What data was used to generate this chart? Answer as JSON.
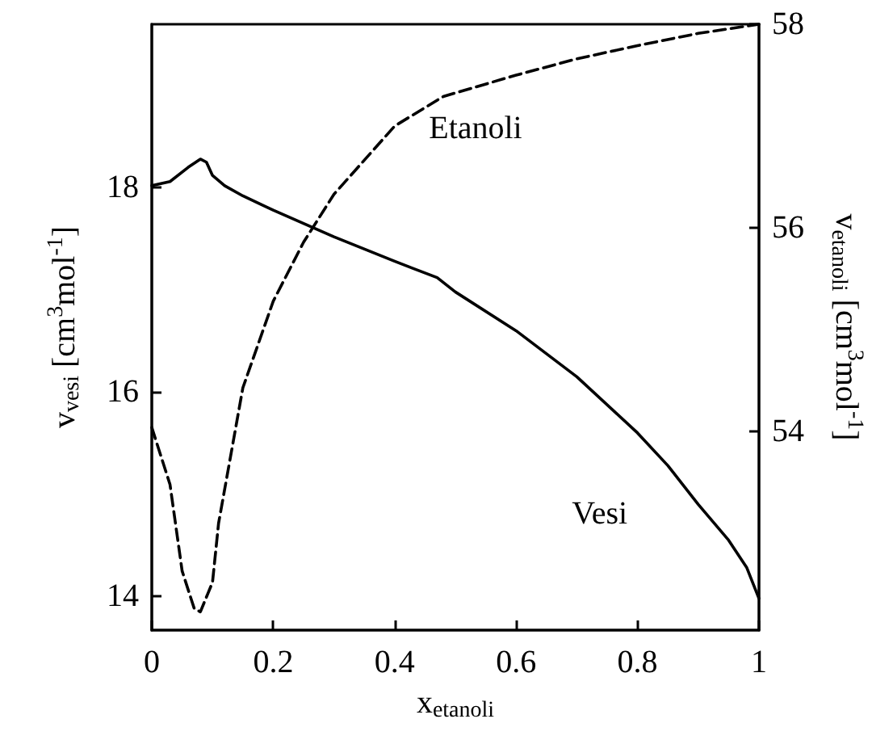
{
  "chart_data": {
    "type": "line",
    "xlabel": "x$_{etanoli}$",
    "ylabel": "v$_{vesi}$ [cm$^{3}$mol$^{-1}$]",
    "y2label": "v$_{etanoli}$ [cm$^{3}$mol$^{-1}$]",
    "xlim": [
      0,
      1
    ],
    "xticks": [
      0,
      0.2,
      0.4,
      0.6,
      0.8,
      1
    ],
    "ylim": [
      13.67,
      19.6
    ],
    "yticks": [
      14,
      16,
      18
    ],
    "y2lim": [
      52.05,
      58
    ],
    "y2ticks": [
      54,
      56,
      58
    ],
    "marker": "none",
    "grid": false,
    "legend": false,
    "series": [
      {
        "name": "Vesi",
        "color": "#000000",
        "line_style": "solid",
        "x": [
          0,
          0.03,
          0.06,
          0.08,
          0.09,
          0.1,
          0.12,
          0.15,
          0.2,
          0.3,
          0.4,
          0.47,
          0.5,
          0.6,
          0.7,
          0.8,
          0.85,
          0.9,
          0.95,
          0.98,
          1.0
        ],
        "values": [
          18.02,
          18.06,
          18.2,
          18.28,
          18.25,
          18.12,
          18.02,
          17.92,
          17.78,
          17.52,
          17.28,
          17.12,
          16.98,
          16.6,
          16.15,
          15.6,
          15.28,
          14.9,
          14.55,
          14.28,
          13.98
        ]
      },
      {
        "name": "Etanoli",
        "color": "#000000",
        "line_style": "dashed",
        "axis": "y2",
        "x": [
          0,
          0.03,
          0.05,
          0.07,
          0.08,
          0.1,
          0.11,
          0.15,
          0.2,
          0.25,
          0.3,
          0.4,
          0.48,
          0.6,
          0.7,
          0.8,
          0.9,
          1.0
        ],
        "values": [
          54.04,
          53.48,
          52.63,
          52.26,
          52.23,
          52.52,
          53.1,
          54.43,
          55.28,
          55.86,
          56.33,
          57.0,
          57.29,
          57.5,
          57.66,
          57.79,
          57.91,
          58.0
        ]
      }
    ]
  }
}
